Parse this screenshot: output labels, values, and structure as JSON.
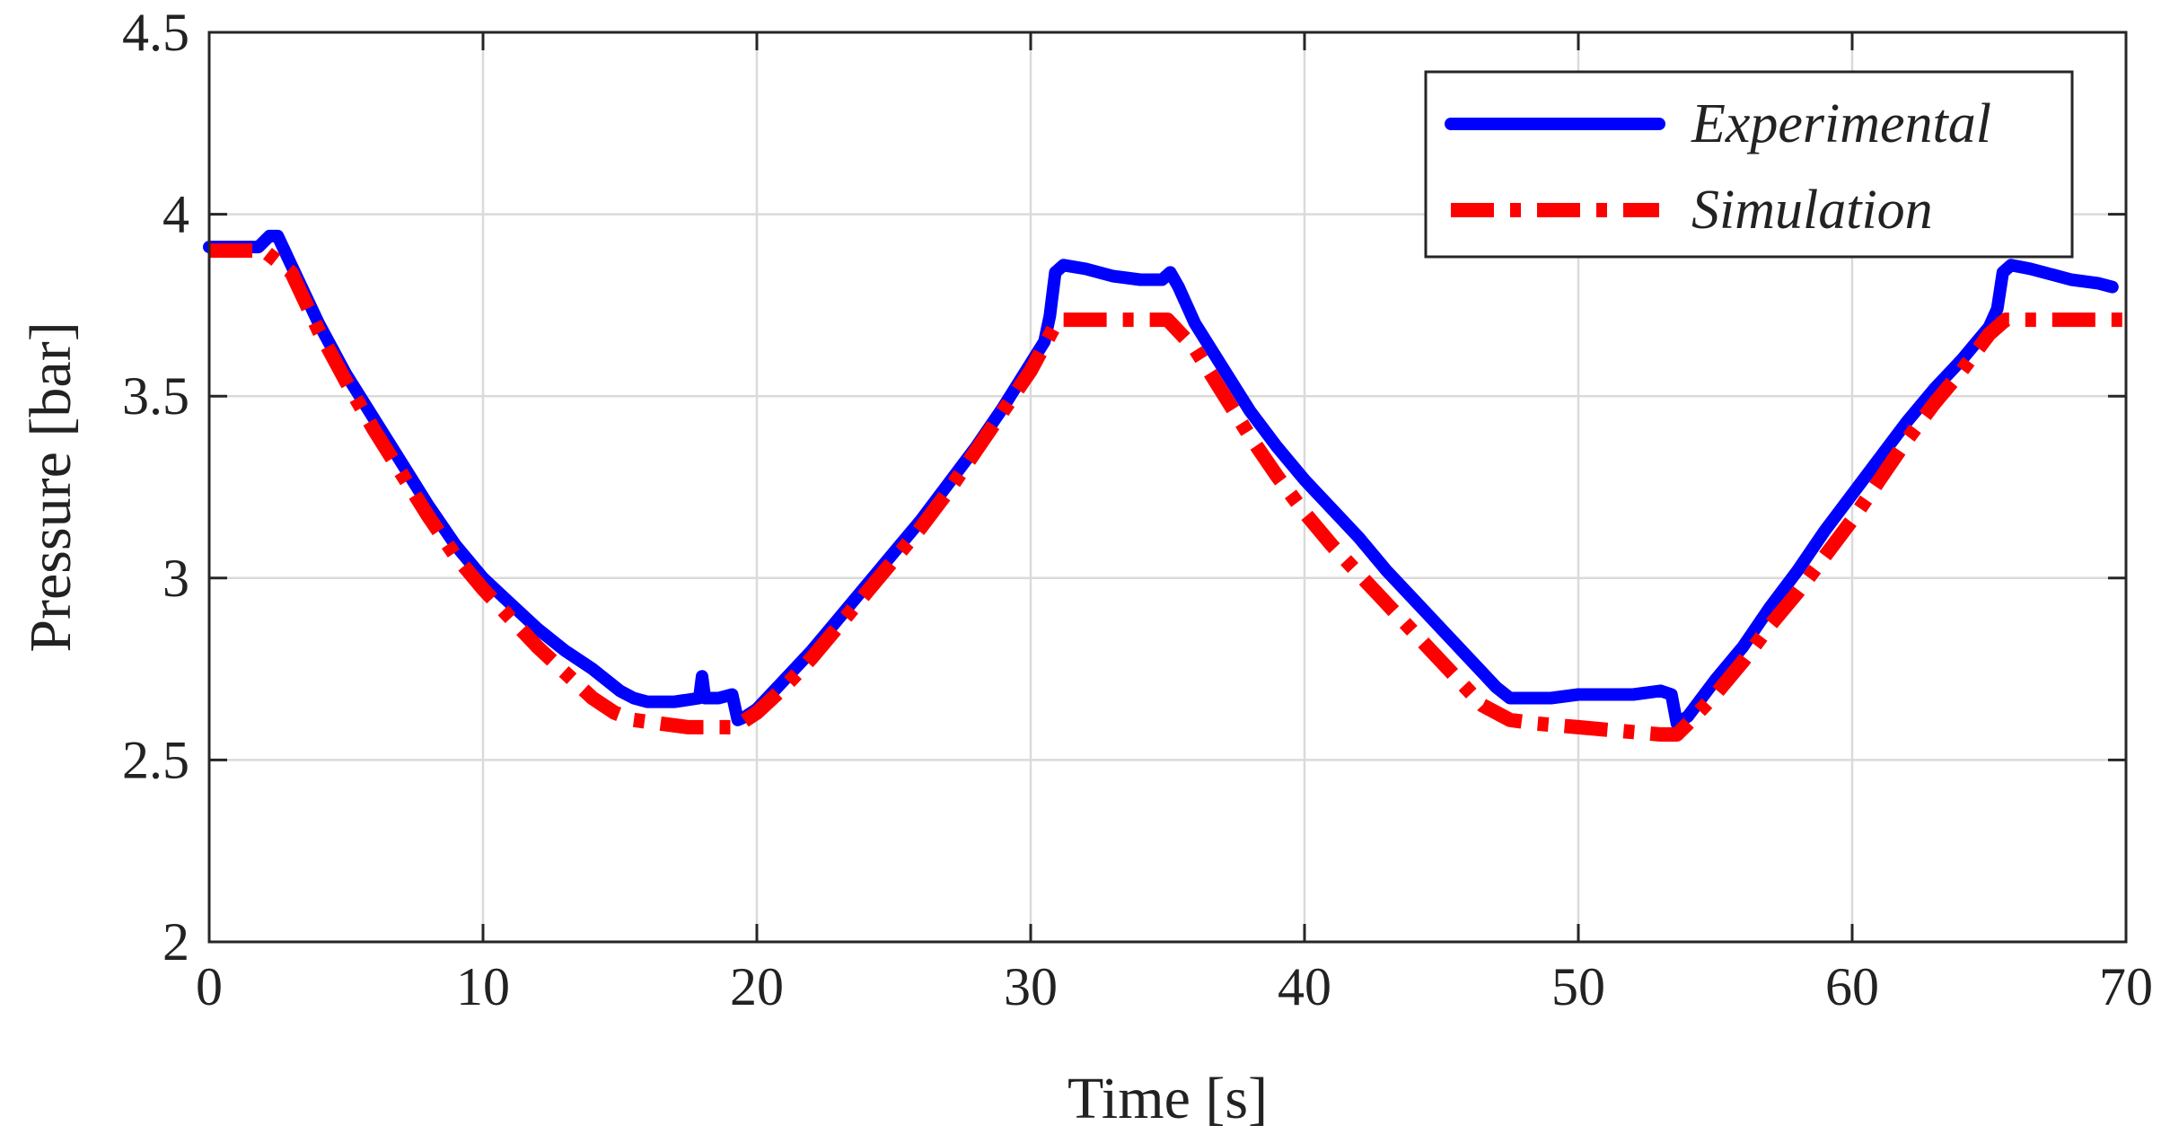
{
  "chart_data": {
    "type": "line",
    "title": "",
    "xlabel": "Time [s]",
    "ylabel": "Pressure [bar]",
    "xlim": [
      0,
      70
    ],
    "ylim": [
      2,
      4.5
    ],
    "xticks": [
      0,
      10,
      20,
      30,
      40,
      50,
      60,
      70
    ],
    "yticks": [
      2,
      2.5,
      3,
      3.5,
      4,
      4.5
    ],
    "xtick_labels": [
      "0",
      "10",
      "20",
      "30",
      "40",
      "50",
      "60",
      "70"
    ],
    "ytick_labels": [
      "2",
      "2.5",
      "3",
      "3.5",
      "4",
      "4.5"
    ],
    "grid": true,
    "legend_position": "top-right",
    "series": [
      {
        "name": "Experimental",
        "color": "#0000ff",
        "style": "solid",
        "points": [
          [
            0,
            3.91
          ],
          [
            1,
            3.91
          ],
          [
            1.8,
            3.91
          ],
          [
            2.2,
            3.94
          ],
          [
            2.5,
            3.94
          ],
          [
            3,
            3.86
          ],
          [
            4,
            3.7
          ],
          [
            5,
            3.56
          ],
          [
            6,
            3.44
          ],
          [
            7,
            3.32
          ],
          [
            8,
            3.2
          ],
          [
            9,
            3.09
          ],
          [
            10,
            3.0
          ],
          [
            11,
            2.93
          ],
          [
            12,
            2.86
          ],
          [
            13,
            2.8
          ],
          [
            14,
            2.75
          ],
          [
            15,
            2.69
          ],
          [
            15.5,
            2.67
          ],
          [
            16,
            2.66
          ],
          [
            17,
            2.66
          ],
          [
            17.9,
            2.67
          ],
          [
            18.0,
            2.73
          ],
          [
            18.1,
            2.67
          ],
          [
            18.6,
            2.67
          ],
          [
            19.1,
            2.68
          ],
          [
            19.3,
            2.61
          ],
          [
            19.6,
            2.62
          ],
          [
            20,
            2.64
          ],
          [
            21,
            2.72
          ],
          [
            22,
            2.8
          ],
          [
            23,
            2.89
          ],
          [
            24,
            2.98
          ],
          [
            25,
            3.07
          ],
          [
            26,
            3.16
          ],
          [
            27,
            3.26
          ],
          [
            28,
            3.36
          ],
          [
            29,
            3.47
          ],
          [
            30,
            3.59
          ],
          [
            30.5,
            3.65
          ],
          [
            30.7,
            3.72
          ],
          [
            30.9,
            3.84
          ],
          [
            31.2,
            3.86
          ],
          [
            32,
            3.85
          ],
          [
            33,
            3.83
          ],
          [
            34,
            3.82
          ],
          [
            34.8,
            3.82
          ],
          [
            35.1,
            3.84
          ],
          [
            35.4,
            3.8
          ],
          [
            36,
            3.7
          ],
          [
            37,
            3.58
          ],
          [
            38,
            3.46
          ],
          [
            39,
            3.36
          ],
          [
            40,
            3.27
          ],
          [
            41,
            3.19
          ],
          [
            42,
            3.11
          ],
          [
            43,
            3.02
          ],
          [
            44,
            2.94
          ],
          [
            45,
            2.86
          ],
          [
            46,
            2.78
          ],
          [
            47,
            2.7
          ],
          [
            47.5,
            2.67
          ],
          [
            48,
            2.67
          ],
          [
            49,
            2.67
          ],
          [
            50,
            2.68
          ],
          [
            51,
            2.68
          ],
          [
            52,
            2.68
          ],
          [
            53,
            2.69
          ],
          [
            53.4,
            2.68
          ],
          [
            53.6,
            2.6
          ],
          [
            54,
            2.62
          ],
          [
            55,
            2.72
          ],
          [
            56,
            2.81
          ],
          [
            57,
            2.92
          ],
          [
            58,
            3.02
          ],
          [
            59,
            3.13
          ],
          [
            60,
            3.23
          ],
          [
            61,
            3.33
          ],
          [
            62,
            3.43
          ],
          [
            63,
            3.52
          ],
          [
            64,
            3.6
          ],
          [
            65,
            3.69
          ],
          [
            65.3,
            3.74
          ],
          [
            65.5,
            3.84
          ],
          [
            65.8,
            3.86
          ],
          [
            66.5,
            3.85
          ],
          [
            67,
            3.84
          ],
          [
            68,
            3.82
          ],
          [
            69,
            3.81
          ],
          [
            69.5,
            3.8
          ]
        ]
      },
      {
        "name": "Simulation",
        "color": "#ff0000",
        "style": "dash-dot",
        "points": [
          [
            0,
            3.9
          ],
          [
            2,
            3.9
          ],
          [
            3,
            3.84
          ],
          [
            4,
            3.68
          ],
          [
            5,
            3.54
          ],
          [
            6,
            3.41
          ],
          [
            7,
            3.29
          ],
          [
            8,
            3.17
          ],
          [
            9,
            3.06
          ],
          [
            10,
            2.97
          ],
          [
            11,
            2.89
          ],
          [
            12,
            2.81
          ],
          [
            13,
            2.74
          ],
          [
            14,
            2.67
          ],
          [
            14.8,
            2.63
          ],
          [
            15.5,
            2.61
          ],
          [
            16.5,
            2.6
          ],
          [
            17.5,
            2.59
          ],
          [
            18.5,
            2.59
          ],
          [
            19.2,
            2.59
          ],
          [
            20,
            2.63
          ],
          [
            21,
            2.7
          ],
          [
            22,
            2.78
          ],
          [
            23,
            2.87
          ],
          [
            24,
            2.96
          ],
          [
            25,
            3.05
          ],
          [
            26,
            3.14
          ],
          [
            27,
            3.24
          ],
          [
            28,
            3.35
          ],
          [
            29,
            3.46
          ],
          [
            30,
            3.57
          ],
          [
            31,
            3.71
          ],
          [
            32,
            3.71
          ],
          [
            33,
            3.71
          ],
          [
            34,
            3.71
          ],
          [
            35,
            3.71
          ],
          [
            36,
            3.63
          ],
          [
            37,
            3.51
          ],
          [
            38,
            3.39
          ],
          [
            39,
            3.28
          ],
          [
            40,
            3.18
          ],
          [
            41,
            3.09
          ],
          [
            42,
            3.01
          ],
          [
            43,
            2.93
          ],
          [
            44,
            2.85
          ],
          [
            45,
            2.77
          ],
          [
            46,
            2.69
          ],
          [
            46.5,
            2.65
          ],
          [
            47.5,
            2.61
          ],
          [
            48.5,
            2.6
          ],
          [
            50,
            2.59
          ],
          [
            51.5,
            2.58
          ],
          [
            53,
            2.57
          ],
          [
            53.6,
            2.57
          ],
          [
            54,
            2.6
          ],
          [
            55,
            2.68
          ],
          [
            56,
            2.77
          ],
          [
            57,
            2.87
          ],
          [
            58,
            2.96
          ],
          [
            59,
            3.06
          ],
          [
            60,
            3.16
          ],
          [
            61,
            3.27
          ],
          [
            62,
            3.38
          ],
          [
            63,
            3.48
          ],
          [
            64,
            3.57
          ],
          [
            65,
            3.67
          ],
          [
            65.6,
            3.71
          ],
          [
            67,
            3.71
          ],
          [
            68.5,
            3.71
          ],
          [
            70,
            3.71
          ]
        ]
      }
    ]
  }
}
